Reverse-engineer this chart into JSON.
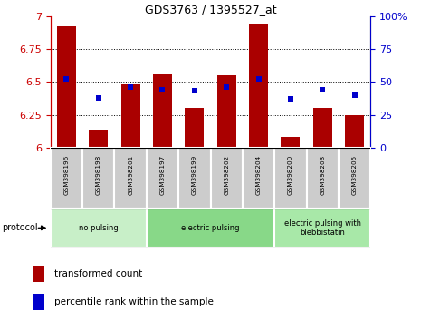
{
  "title": "GDS3763 / 1395527_at",
  "samples": [
    "GSM398196",
    "GSM398198",
    "GSM398201",
    "GSM398197",
    "GSM398199",
    "GSM398202",
    "GSM398204",
    "GSM398200",
    "GSM398203",
    "GSM398205"
  ],
  "red_values": [
    6.92,
    6.14,
    6.48,
    6.56,
    6.3,
    6.55,
    6.94,
    6.08,
    6.3,
    6.25
  ],
  "blue_values": [
    52,
    38,
    46,
    44,
    43,
    46,
    52,
    37,
    44,
    40
  ],
  "ylim_left": [
    6.0,
    7.0
  ],
  "ylim_right": [
    0,
    100
  ],
  "yticks_left": [
    6.0,
    6.25,
    6.5,
    6.75,
    7.0
  ],
  "ytick_labels_left": [
    "6",
    "6.25",
    "6.5",
    "6.75",
    "7"
  ],
  "yticks_right": [
    0,
    25,
    50,
    75,
    100
  ],
  "ytick_labels_right": [
    "0",
    "25",
    "50",
    "75",
    "100%"
  ],
  "groups": [
    {
      "label": "no pulsing",
      "start": 0,
      "end": 3,
      "color": "#c8efc8"
    },
    {
      "label": "electric pulsing",
      "start": 3,
      "end": 7,
      "color": "#88d888"
    },
    {
      "label": "electric pulsing with\nblebbistatin",
      "start": 7,
      "end": 10,
      "color": "#a8e8a8"
    }
  ],
  "protocol_label": "protocol",
  "bar_color": "#aa0000",
  "dot_color": "#0000cc",
  "bar_width": 0.6,
  "legend_red_label": "transformed count",
  "legend_blue_label": "percentile rank within the sample",
  "tick_color_left": "#cc0000",
  "tick_color_right": "#0000cc",
  "grid_yticks": [
    6.25,
    6.5,
    6.75
  ]
}
